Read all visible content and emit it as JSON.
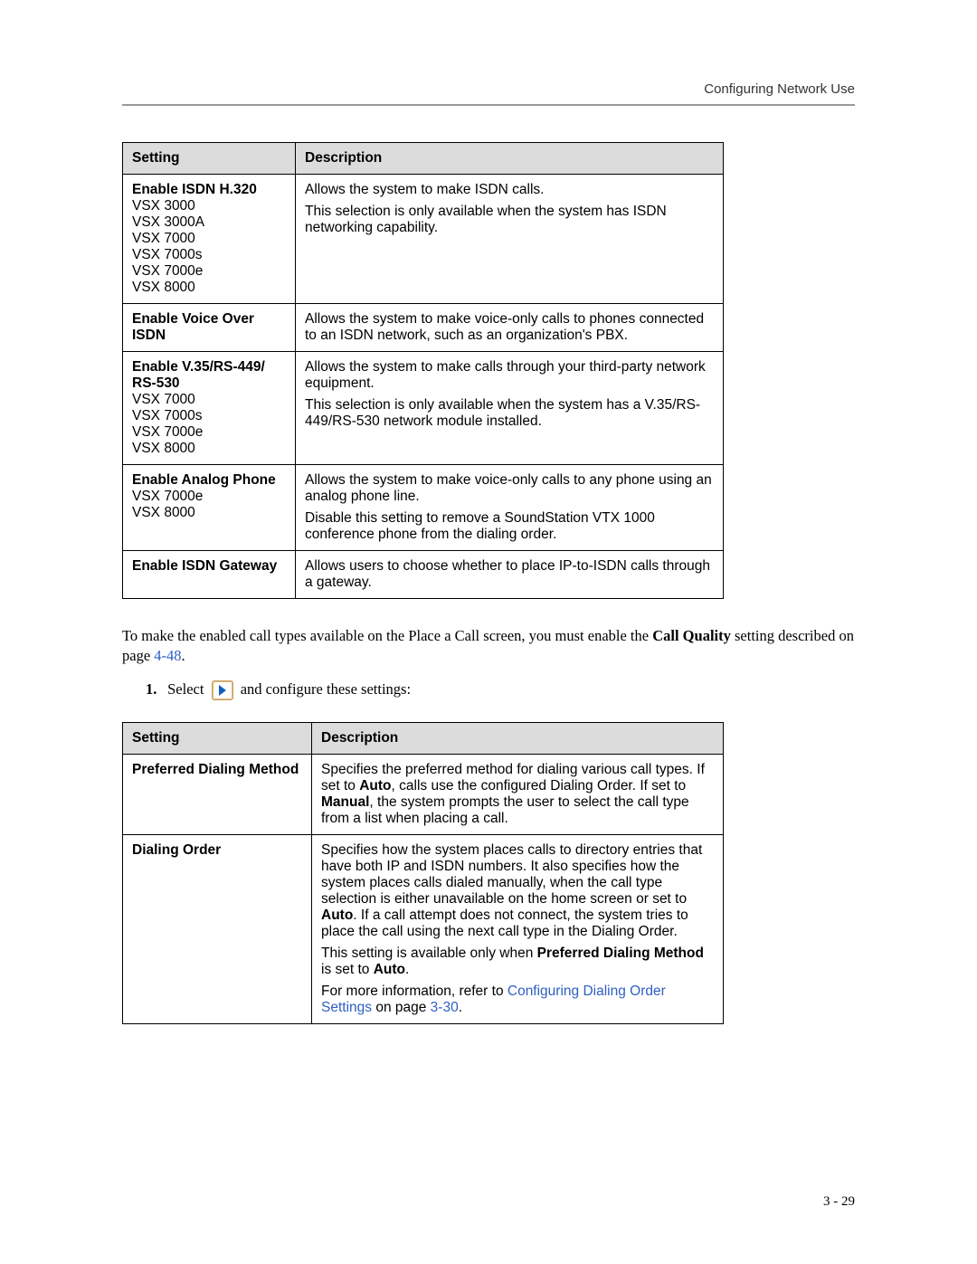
{
  "header": {
    "title": "Configuring Network Use"
  },
  "table1": {
    "headers": {
      "setting": "Setting",
      "description": "Description"
    },
    "rows": [
      {
        "setting_bold": "Enable ISDN H.320",
        "setting_models": [
          "VSX 3000",
          "VSX 3000A",
          "VSX 7000",
          "VSX 7000s",
          "VSX 7000e",
          "VSX 8000"
        ],
        "desc": [
          "Allows the system to make ISDN calls.",
          "This selection is only available when the system has ISDN networking capability."
        ]
      },
      {
        "setting_bold": "Enable Voice Over ISDN",
        "setting_models": [],
        "desc": [
          "Allows the system to make voice-only calls to phones connected to an ISDN network, such as an organization's PBX."
        ]
      },
      {
        "setting_bold": "Enable V.35/RS-449/ RS-530",
        "setting_models": [
          "VSX 7000",
          "VSX 7000s",
          "VSX 7000e",
          "VSX 8000"
        ],
        "desc": [
          "Allows the system to make calls through your third-party network equipment.",
          "This selection is only available when the system has a V.35/RS-449/RS-530 network module installed."
        ]
      },
      {
        "setting_bold": "Enable Analog Phone",
        "setting_models": [
          "VSX 7000e",
          "VSX 8000"
        ],
        "desc": [
          "Allows the system to make voice-only calls to any phone using an analog phone line.",
          "Disable this setting to remove a SoundStation VTX 1000 conference phone from the dialing order."
        ]
      },
      {
        "setting_bold": "Enable ISDN Gateway",
        "setting_models": [],
        "desc": [
          "Allows users to choose whether to place IP-to-ISDN calls through a gateway."
        ]
      }
    ]
  },
  "body": {
    "para1_pre": "To make the enabled call types available on the Place a Call screen, you must enable the ",
    "para1_bold": "Call Quality",
    "para1_mid": " setting described on page ",
    "para1_link": "4-48",
    "para1_post": ".",
    "step1_num": "1.",
    "step1_pre": "Select ",
    "step1_post": " and configure these settings:"
  },
  "table2": {
    "headers": {
      "setting": "Setting",
      "description": "Description"
    },
    "rows": [
      {
        "setting_bold": "Preferred Dialing Method",
        "desc_parts": [
          {
            "t": "plain",
            "v": "Specifies the preferred method for dialing various call types. If set to "
          },
          {
            "t": "bold",
            "v": "Auto"
          },
          {
            "t": "plain",
            "v": ", calls use the configured Dialing Order. If set to "
          },
          {
            "t": "bold",
            "v": "Manual"
          },
          {
            "t": "plain",
            "v": ", the system prompts the user to select the call type from a list when placing a call."
          }
        ]
      },
      {
        "setting_bold": "Dialing Order",
        "desc_parts": [
          {
            "t": "plain",
            "v": "Specifies how the system places calls to directory entries that have both IP and ISDN numbers. It also specifies how the system places calls dialed manually, when the call type selection is either unavailable on the home screen or set to "
          },
          {
            "t": "bold",
            "v": "Auto"
          },
          {
            "t": "plain",
            "v": ". If a call attempt does not connect, the system tries to place the call using the next call type in the Dialing Order."
          }
        ],
        "desc2_parts": [
          {
            "t": "plain",
            "v": "This setting is available only when "
          },
          {
            "t": "bold",
            "v": "Preferred Dialing Method"
          },
          {
            "t": "plain",
            "v": " is set to "
          },
          {
            "t": "bold",
            "v": "Auto"
          },
          {
            "t": "plain",
            "v": "."
          }
        ],
        "desc3_parts": [
          {
            "t": "plain",
            "v": "For more information, refer to "
          },
          {
            "t": "link",
            "v": "Configuring Dialing Order Settings"
          },
          {
            "t": "plain",
            "v": " on page "
          },
          {
            "t": "link",
            "v": "3-30"
          },
          {
            "t": "plain",
            "v": "."
          }
        ]
      }
    ]
  },
  "footer": {
    "page_num": "3 - 29"
  }
}
